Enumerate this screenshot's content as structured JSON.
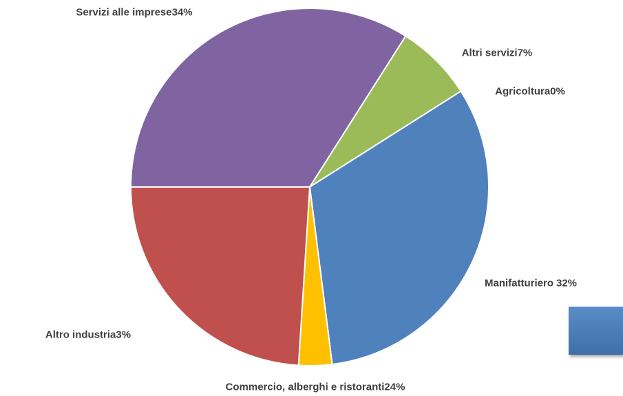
{
  "chart_data": {
    "type": "pie",
    "categories": [
      "Servizi alle imprese",
      "Altri servizi",
      "Agricoltura",
      "Manifatturiero",
      "Altro industria",
      "Commercio, alberghi e ristoranti"
    ],
    "values": [
      34,
      7,
      0,
      32,
      3,
      24
    ],
    "value_labels": [
      "34%",
      "7%",
      "0%",
      "32%",
      "3%",
      "24%"
    ],
    "colors": [
      "#8064a2",
      "#9bbb59",
      "#dfe9f4",
      "#4f81bd",
      "#ffc000",
      "#c0504d"
    ]
  }
}
